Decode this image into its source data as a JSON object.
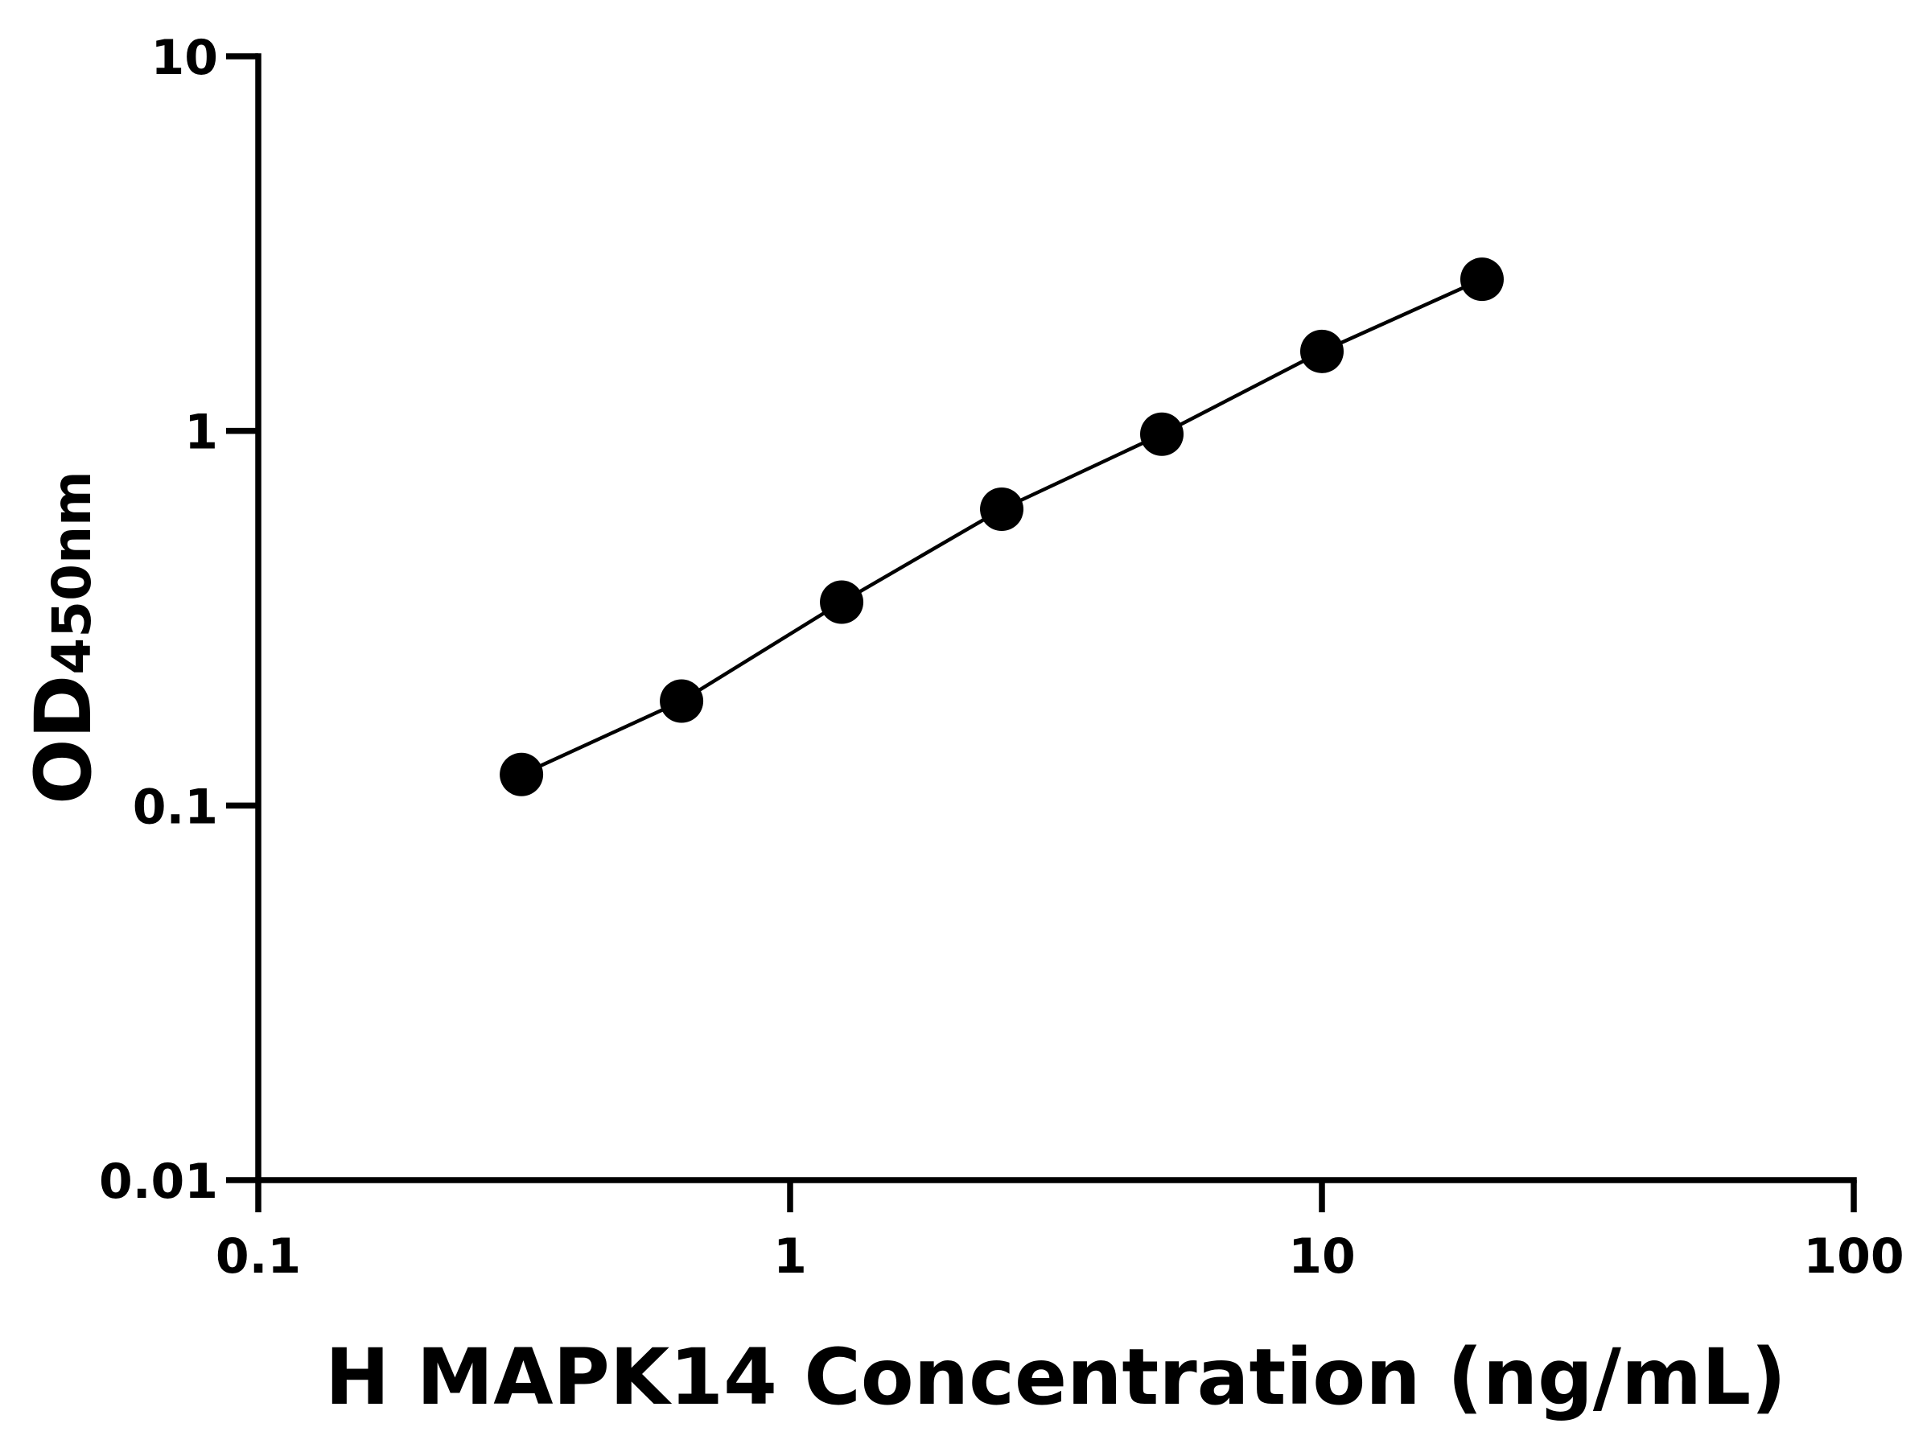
{
  "chart_data": {
    "type": "scatter",
    "x_label": "H MAPK14 Concentration (ng/mL)",
    "y_label": "OD",
    "y_label_subscript": "450nm",
    "x": [
      0.3125,
      0.625,
      1.25,
      2.5,
      5,
      10,
      20
    ],
    "series": [
      {
        "color": "#000000",
        "values": [
          0.121,
          0.19,
          0.349,
          0.618,
          0.98,
          1.63,
          2.54
        ]
      }
    ],
    "xlim": [
      0.1,
      100
    ],
    "xticks": [
      0.1,
      1,
      10,
      100
    ],
    "ylim": [
      0.01,
      10
    ],
    "yticks": [
      0.01,
      0.1,
      1,
      10
    ],
    "xscale": "log",
    "yscale": "log",
    "connect": true,
    "grid": false
  }
}
